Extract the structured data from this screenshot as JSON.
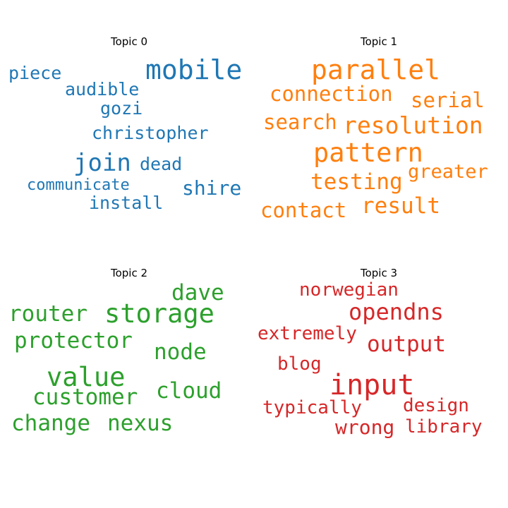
{
  "chart_data": {
    "type": "wordcloud",
    "panels": [
      {
        "title": "Topic 0",
        "color": "#1f77b4",
        "words": [
          "piece",
          "mobile",
          "audible",
          "gozi",
          "christopher",
          "join",
          "dead",
          "communicate",
          "shire",
          "install"
        ]
      },
      {
        "title": "Topic 1",
        "color": "#ff7f0e",
        "words": [
          "parallel",
          "connection",
          "serial",
          "search",
          "resolution",
          "pattern",
          "greater",
          "testing",
          "contact",
          "result"
        ]
      },
      {
        "title": "Topic 2",
        "color": "#2ca02c",
        "words": [
          "dave",
          "router",
          "storage",
          "protector",
          "node",
          "value",
          "cloud",
          "customer",
          "change",
          "nexus"
        ]
      },
      {
        "title": "Topic 3",
        "color": "#d62728",
        "words": [
          "norwegian",
          "opendns",
          "extremely",
          "output",
          "blog",
          "input",
          "typically",
          "design",
          "wrong",
          "library"
        ]
      }
    ]
  }
}
